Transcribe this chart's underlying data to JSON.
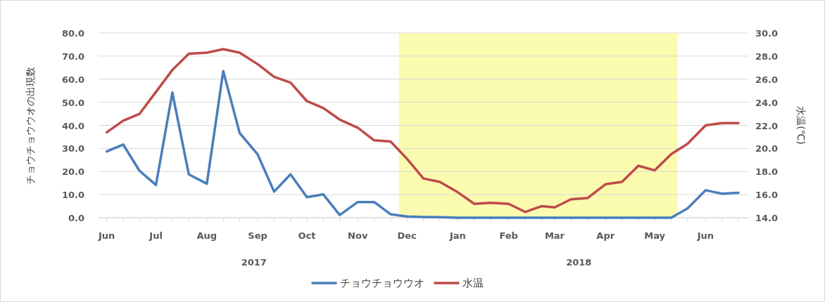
{
  "chart_data": {
    "type": "line",
    "ylabel": "チョウチョウウオの出現数",
    "y2label": "水温(℃)",
    "x": [
      "2017-06-01",
      "2017-06-11",
      "2017-06-21",
      "2017-07-01",
      "2017-07-11",
      "2017-07-21",
      "2017-08-01",
      "2017-08-11",
      "2017-08-21",
      "2017-09-01",
      "2017-09-11",
      "2017-09-21",
      "2017-10-01",
      "2017-10-11",
      "2017-10-21",
      "2017-11-01",
      "2017-11-11",
      "2017-11-21",
      "2017-12-01",
      "2017-12-11",
      "2017-12-21",
      "2018-01-01",
      "2018-01-11",
      "2018-01-21",
      "2018-02-01",
      "2018-02-11",
      "2018-02-21",
      "2018-03-01",
      "2018-03-11",
      "2018-03-21",
      "2018-04-01",
      "2018-04-11",
      "2018-04-21",
      "2018-05-01",
      "2018-05-11",
      "2018-05-21",
      "2018-06-01",
      "2018-06-11",
      "2018-06-21"
    ],
    "xlim": [
      "2017-05-27",
      "2018-06-27"
    ],
    "xticks": [
      {
        "value": "2017-06-01",
        "label": "Jun"
      },
      {
        "value": "2017-06-11",
        "label": null
      },
      {
        "value": "2017-06-21",
        "label": null
      },
      {
        "value": "2017-07-01",
        "label": "Jul"
      },
      {
        "value": "2017-07-11",
        "label": null
      },
      {
        "value": "2017-07-21",
        "label": null
      },
      {
        "value": "2017-08-01",
        "label": "Aug"
      },
      {
        "value": "2017-08-11",
        "label": null
      },
      {
        "value": "2017-08-21",
        "label": null
      },
      {
        "value": "2017-09-01",
        "label": "Sep"
      },
      {
        "value": "2017-09-11",
        "label": null
      },
      {
        "value": "2017-09-21",
        "label": null
      },
      {
        "value": "2017-10-01",
        "label": "Oct"
      },
      {
        "value": "2017-10-11",
        "label": null
      },
      {
        "value": "2017-10-21",
        "label": null
      },
      {
        "value": "2017-11-01",
        "label": "Nov"
      },
      {
        "value": "2017-11-11",
        "label": null
      },
      {
        "value": "2017-11-21",
        "label": null
      },
      {
        "value": "2017-12-01",
        "label": "Dec"
      },
      {
        "value": "2017-12-11",
        "label": null
      },
      {
        "value": "2017-12-21",
        "label": null
      },
      {
        "value": "2018-01-01",
        "label": "Jan"
      },
      {
        "value": "2018-01-11",
        "label": null
      },
      {
        "value": "2018-01-21",
        "label": null
      },
      {
        "value": "2018-02-01",
        "label": "Feb"
      },
      {
        "value": "2018-02-11",
        "label": null
      },
      {
        "value": "2018-02-21",
        "label": null
      },
      {
        "value": "2018-03-01",
        "label": "Mar"
      },
      {
        "value": "2018-03-11",
        "label": null
      },
      {
        "value": "2018-03-21",
        "label": null
      },
      {
        "value": "2018-04-01",
        "label": "Apr"
      },
      {
        "value": "2018-04-11",
        "label": null
      },
      {
        "value": "2018-04-21",
        "label": null
      },
      {
        "value": "2018-05-01",
        "label": "May"
      },
      {
        "value": "2018-05-11",
        "label": null
      },
      {
        "value": "2018-05-21",
        "label": null
      },
      {
        "value": "2018-06-01",
        "label": "Jun"
      },
      {
        "value": "2018-06-11",
        "label": null
      },
      {
        "value": "2018-06-21",
        "label": null
      }
    ],
    "ylim": [
      0,
      80
    ],
    "yticks": [
      {
        "value": 0,
        "label": "0.0"
      },
      {
        "value": 10,
        "label": "10.0"
      },
      {
        "value": 20,
        "label": "20.0"
      },
      {
        "value": 30,
        "label": "30.0"
      },
      {
        "value": 40,
        "label": "40.0"
      },
      {
        "value": 50,
        "label": "50.0"
      },
      {
        "value": 60,
        "label": "60.0"
      },
      {
        "value": 70,
        "label": "70.0"
      },
      {
        "value": 80,
        "label": "80.0"
      }
    ],
    "y2lim": [
      14,
      30
    ],
    "y2ticks": [
      {
        "value": 14,
        "label": "14.0"
      },
      {
        "value": 16,
        "label": "16.0"
      },
      {
        "value": 18,
        "label": "18.0"
      },
      {
        "value": 20,
        "label": "20.0"
      },
      {
        "value": 22,
        "label": "22.0"
      },
      {
        "value": 24,
        "label": "24.0"
      },
      {
        "value": 26,
        "label": "26.0"
      },
      {
        "value": 28,
        "label": "28.0"
      },
      {
        "value": 30,
        "label": "30.0"
      }
    ],
    "series": [
      {
        "name": "チョウチョウウオ",
        "color": "#4a7ebb",
        "values": [
          28.7,
          31.7,
          20.3,
          14.2,
          54.2,
          18.8,
          14.7,
          63.5,
          36.7,
          27.4,
          11.3,
          18.8,
          8.9,
          10.1,
          1.2,
          6.8,
          6.8,
          1.5,
          0.5,
          0.3,
          0.2,
          0,
          0,
          0,
          0,
          0,
          0,
          0,
          0,
          0,
          0,
          0,
          0,
          0,
          0,
          4.0,
          11.9,
          10.4,
          10.8
        ]
      },
      {
        "name": "水温",
        "color": "#be4b48",
        "axis": "y2",
        "values": [
          21.4,
          22.4,
          23.0,
          24.9,
          26.8,
          28.2,
          28.3,
          28.6,
          28.3,
          27.3,
          26.2,
          25.7,
          24.1,
          23.5,
          22.5,
          21.8,
          20.7,
          20.6,
          19.1,
          17.4,
          17.1,
          16.2,
          15.2,
          15.3,
          15.2,
          14.5,
          15.0,
          14.9,
          15.6,
          15.7,
          16.9,
          17.1,
          18.5,
          18.1,
          19.5,
          20.4,
          22.0,
          22.2,
          22.2
        ]
      }
    ],
    "bands": [
      {
        "axis": "x",
        "from": "2017-11-26",
        "to": "2018-05-15",
        "color": "#fbfbb0"
      }
    ],
    "annotations": [
      "2017",
      "2018"
    ],
    "grid": "y",
    "legend": "bottom"
  }
}
